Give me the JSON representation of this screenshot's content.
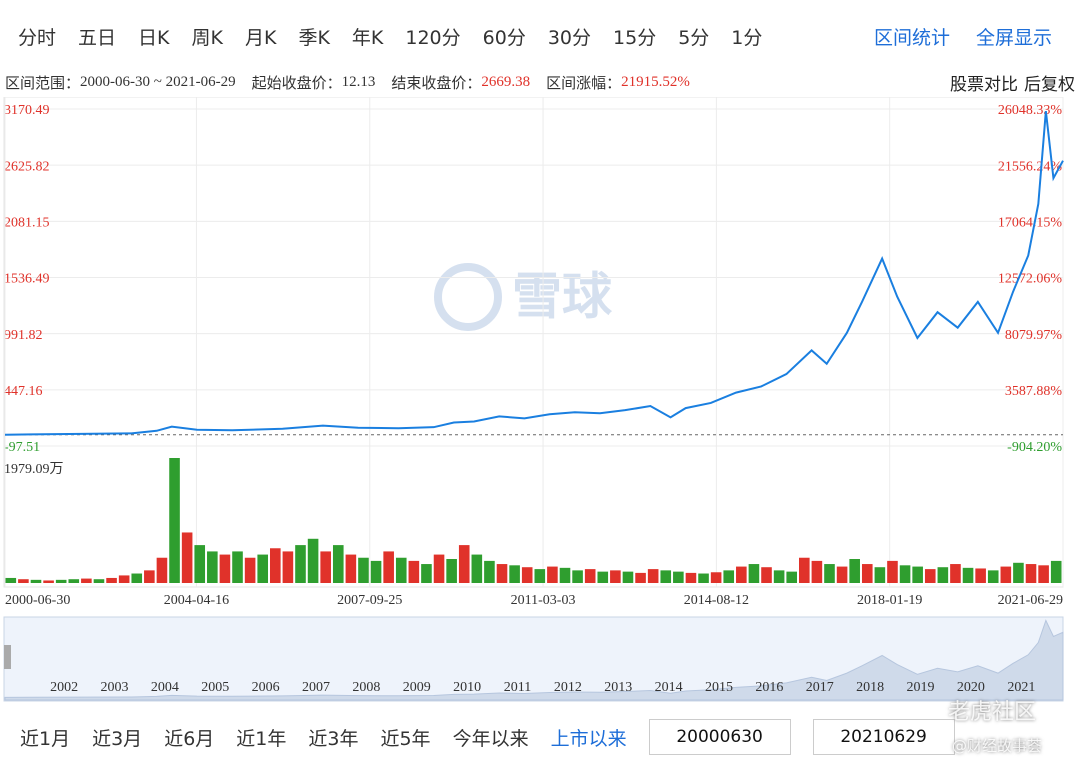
{
  "tabs": [
    "分时",
    "五日",
    "日K",
    "周K",
    "月K",
    "季K",
    "年K",
    "120分",
    "60分",
    "30分",
    "15分",
    "5分",
    "1分"
  ],
  "tab_actions": [
    "区间统计",
    "全屏显示"
  ],
  "info": {
    "range_label": "区间范围：",
    "range": "2000-06-30 ~ 2021-06-29",
    "start_label": "起始收盘价：",
    "start": "12.13",
    "end_label": "结束收盘价：",
    "end": "2669.38",
    "change_label": "区间涨幅：",
    "change": "21915.52%",
    "actions": [
      "股票对比",
      "后复权"
    ]
  },
  "watermark": "雪球",
  "chart_data": {
    "type": "line",
    "x": [
      2000.49,
      2001,
      2002,
      2003,
      2003.5,
      2003.8,
      2004.3,
      2005,
      2006,
      2006.8,
      2007.5,
      2008.3,
      2009,
      2009.4,
      2009.8,
      2010.3,
      2010.8,
      2011.3,
      2011.8,
      2012.3,
      2012.8,
      2013.3,
      2013.7,
      2014,
      2014.5,
      2015,
      2015.5,
      2016,
      2016.5,
      2016.8,
      2017.2,
      2017.5,
      2017.9,
      2018.2,
      2018.6,
      2019,
      2019.4,
      2019.8,
      2020.2,
      2020.5,
      2020.8,
      2021,
      2021.15,
      2021.3,
      2021.49
    ],
    "series": [
      {
        "color": "#1a7fe0",
        "values": [
          12.13,
          15,
          20,
          25,
          50,
          90,
          60,
          55,
          70,
          100,
          80,
          75,
          85,
          130,
          140,
          190,
          170,
          210,
          230,
          220,
          250,
          290,
          180,
          270,
          320,
          420,
          480,
          600,
          830,
          700,
          1000,
          1300,
          1720,
          1350,
          950,
          1200,
          1050,
          1300,
          1000,
          1400,
          1750,
          2250,
          3150,
          2500,
          2669.38
        ]
      }
    ],
    "xlim": [
      2000.49,
      2021.49
    ],
    "xticks": [
      {
        "value": 2000.49,
        "label": "2000-06-30"
      },
      {
        "value": 2004.29,
        "label": "2004-04-16"
      },
      {
        "value": 2007.73,
        "label": "2007-09-25"
      },
      {
        "value": 2011.17,
        "label": "2011-03-03"
      },
      {
        "value": 2014.61,
        "label": "2014-08-12"
      },
      {
        "value": 2018.05,
        "label": "2018-01-19"
      },
      {
        "value": 2021.49,
        "label": "2021-06-29"
      }
    ],
    "ylim": [
      -97.51,
      3170.49
    ],
    "yticks": [
      3170.49,
      2625.82,
      2081.15,
      1536.49,
      991.82,
      447.16,
      -97.51
    ],
    "y2lim": [
      -904.2,
      26048.33
    ],
    "y2ticks": [
      {
        "value": 26048.33,
        "label": "26048.33%"
      },
      {
        "value": 21556.24,
        "label": "21556.24%"
      },
      {
        "value": 17064.15,
        "label": "17064.15%"
      },
      {
        "value": 12572.06,
        "label": "12572.06%"
      },
      {
        "value": 8079.97,
        "label": "8079.97%"
      },
      {
        "value": 3587.88,
        "label": "3587.88%"
      },
      {
        "value": -904.2,
        "label": "-904.20%"
      }
    ],
    "grid": true
  },
  "volume": {
    "type": "bar",
    "x": [
      2000.5,
      2000.75,
      2001,
      2001.25,
      2001.5,
      2001.75,
      2002,
      2002.25,
      2002.5,
      2002.75,
      2003,
      2003.25,
      2003.5,
      2003.75,
      2004,
      2004.25,
      2004.5,
      2004.75,
      2005,
      2005.25,
      2005.5,
      2005.75,
      2006,
      2006.25,
      2006.5,
      2006.75,
      2007,
      2007.25,
      2007.5,
      2007.75,
      2008,
      2008.25,
      2008.5,
      2008.75,
      2009,
      2009.25,
      2009.5,
      2009.75,
      2010,
      2010.25,
      2010.5,
      2010.75,
      2011,
      2011.25,
      2011.5,
      2011.75,
      2012,
      2012.25,
      2012.5,
      2012.75,
      2013,
      2013.25,
      2013.5,
      2013.75,
      2014,
      2014.25,
      2014.5,
      2014.75,
      2015,
      2015.25,
      2015.5,
      2015.75,
      2016,
      2016.25,
      2016.5,
      2016.75,
      2017,
      2017.25,
      2017.5,
      2017.75,
      2018,
      2018.25,
      2018.5,
      2018.75,
      2019,
      2019.25,
      2019.5,
      2019.75,
      2020,
      2020.25,
      2020.5,
      2020.75,
      2021,
      2021.25
    ],
    "values": [
      80,
      60,
      50,
      40,
      50,
      60,
      70,
      60,
      80,
      120,
      150,
      200,
      400,
      1979.09,
      800,
      600,
      500,
      450,
      500,
      400,
      450,
      550,
      500,
      600,
      700,
      500,
      600,
      450,
      400,
      350,
      500,
      400,
      350,
      300,
      450,
      380,
      600,
      450,
      350,
      300,
      280,
      250,
      220,
      260,
      240,
      200,
      220,
      180,
      200,
      180,
      160,
      220,
      200,
      180,
      160,
      150,
      170,
      200,
      260,
      300,
      250,
      200,
      180,
      400,
      350,
      300,
      260,
      380,
      300,
      250,
      350,
      280,
      260,
      220,
      250,
      300,
      240,
      230,
      200,
      260,
      320,
      300,
      280,
      350
    ],
    "colors": [
      "#2f9e2f",
      "#e0322a",
      "#2f9e2f",
      "#e0322a",
      "#2f9e2f",
      "#2f9e2f",
      "#e0322a",
      "#2f9e2f",
      "#e0322a",
      "#e0322a",
      "#2f9e2f",
      "#e0322a",
      "#e0322a",
      "#2f9e2f",
      "#e0322a",
      "#2f9e2f",
      "#2f9e2f",
      "#e0322a",
      "#2f9e2f",
      "#e0322a",
      "#2f9e2f",
      "#e0322a",
      "#e0322a",
      "#2f9e2f",
      "#2f9e2f",
      "#e0322a",
      "#2f9e2f",
      "#e0322a",
      "#2f9e2f",
      "#2f9e2f",
      "#e0322a",
      "#2f9e2f",
      "#e0322a",
      "#2f9e2f",
      "#e0322a",
      "#2f9e2f",
      "#e0322a",
      "#2f9e2f",
      "#2f9e2f",
      "#e0322a",
      "#2f9e2f",
      "#e0322a",
      "#2f9e2f",
      "#e0322a",
      "#2f9e2f",
      "#2f9e2f",
      "#e0322a",
      "#2f9e2f",
      "#e0322a",
      "#2f9e2f",
      "#e0322a",
      "#e0322a",
      "#2f9e2f",
      "#2f9e2f",
      "#e0322a",
      "#2f9e2f",
      "#e0322a",
      "#2f9e2f",
      "#e0322a",
      "#2f9e2f",
      "#e0322a",
      "#2f9e2f",
      "#2f9e2f",
      "#e0322a",
      "#e0322a",
      "#2f9e2f",
      "#e0322a",
      "#2f9e2f",
      "#e0322a",
      "#2f9e2f",
      "#e0322a",
      "#2f9e2f",
      "#2f9e2f",
      "#e0322a",
      "#2f9e2f",
      "#e0322a",
      "#2f9e2f",
      "#e0322a",
      "#2f9e2f",
      "#e0322a",
      "#2f9e2f",
      "#e0322a",
      "#e0322a",
      "#2f9e2f"
    ],
    "ylim": [
      0,
      1979.09
    ],
    "yticks": [
      {
        "value": 1979.09,
        "label": "1979.09万"
      }
    ]
  },
  "navigator": {
    "years": [
      2002,
      2003,
      2004,
      2005,
      2006,
      2007,
      2008,
      2009,
      2010,
      2011,
      2012,
      2013,
      2014,
      2015,
      2016,
      2017,
      2018,
      2019,
      2020,
      2021
    ]
  },
  "ranges": [
    "近1月",
    "近3月",
    "近6月",
    "近1年",
    "近3年",
    "近5年",
    "今年以来",
    "上市以来"
  ],
  "active_range": 7,
  "date_inputs": [
    "20000630",
    "20210629"
  ],
  "overlay": [
    "老虎社区",
    "@财经故事荟"
  ]
}
